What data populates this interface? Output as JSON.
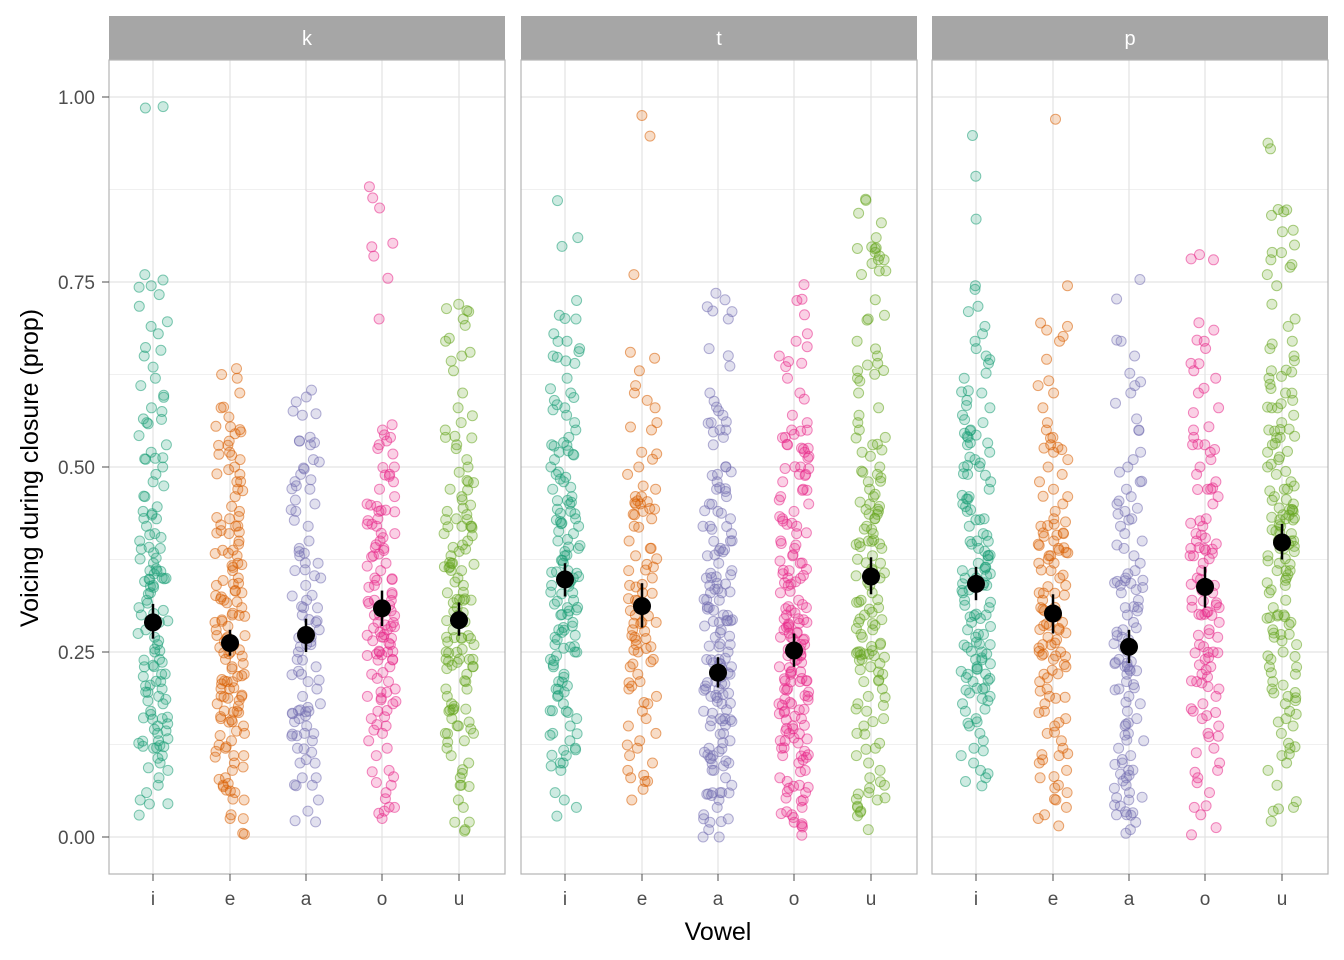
{
  "chart_data": {
    "type": "scatter",
    "title": "",
    "xlabel": "Vowel",
    "ylabel": "Voicing during closure (prop)",
    "facets": [
      "k",
      "t",
      "p"
    ],
    "categories": [
      "i",
      "e",
      "a",
      "o",
      "u"
    ],
    "ylim": [
      -0.05,
      1.05
    ],
    "yticks": [
      0.0,
      0.25,
      0.5,
      0.75,
      1.0
    ],
    "ytick_labels": [
      "0.00",
      "0.25",
      "0.50",
      "0.75",
      "1.00"
    ],
    "grid": true,
    "legend": "none",
    "colors": {
      "i": "#1b9e77",
      "e": "#d95f02",
      "a": "#7570b3",
      "o": "#e7298a",
      "u": "#66a61e",
      "summary": "#000000",
      "strip_bg": "#a6a6a6",
      "grid": "#e3e3e3",
      "panel_border": "#b3b3b3"
    },
    "summary": [
      {
        "facet": "k",
        "vowel": "i",
        "mean": 0.29,
        "lower": 0.268,
        "upper": 0.315
      },
      {
        "facet": "k",
        "vowel": "e",
        "mean": 0.262,
        "lower": 0.245,
        "upper": 0.28
      },
      {
        "facet": "k",
        "vowel": "a",
        "mean": 0.273,
        "lower": 0.25,
        "upper": 0.295
      },
      {
        "facet": "k",
        "vowel": "o",
        "mean": 0.309,
        "lower": 0.285,
        "upper": 0.333
      },
      {
        "facet": "k",
        "vowel": "u",
        "mean": 0.293,
        "lower": 0.272,
        "upper": 0.317
      },
      {
        "facet": "t",
        "vowel": "i",
        "mean": 0.348,
        "lower": 0.325,
        "upper": 0.37
      },
      {
        "facet": "t",
        "vowel": "e",
        "mean": 0.312,
        "lower": 0.283,
        "upper": 0.343
      },
      {
        "facet": "t",
        "vowel": "a",
        "mean": 0.222,
        "lower": 0.202,
        "upper": 0.243
      },
      {
        "facet": "t",
        "vowel": "o",
        "mean": 0.252,
        "lower": 0.23,
        "upper": 0.275
      },
      {
        "facet": "t",
        "vowel": "u",
        "mean": 0.352,
        "lower": 0.328,
        "upper": 0.378
      },
      {
        "facet": "p",
        "vowel": "i",
        "mean": 0.342,
        "lower": 0.32,
        "upper": 0.365
      },
      {
        "facet": "p",
        "vowel": "e",
        "mean": 0.302,
        "lower": 0.275,
        "upper": 0.328
      },
      {
        "facet": "p",
        "vowel": "a",
        "mean": 0.257,
        "lower": 0.235,
        "upper": 0.28
      },
      {
        "facet": "p",
        "vowel": "o",
        "mean": 0.338,
        "lower": 0.31,
        "upper": 0.365
      },
      {
        "facet": "p",
        "vowel": "u",
        "mean": 0.398,
        "lower": 0.375,
        "upper": 0.423
      }
    ],
    "points": [
      {
        "facet": "k",
        "vowel": "i",
        "n": 140,
        "values": [
          0.987,
          0.76,
          0.745,
          0.743,
          0.733,
          0.69,
          0.68,
          0.65,
          0.635,
          0.62,
          0.61,
          0.58,
          0.575,
          0.565,
          0.56,
          0.53,
          0.52,
          0.5,
          0.49,
          0.48,
          0.46,
          0.44,
          0.43,
          0.42,
          0.41,
          0.4,
          0.39,
          0.37,
          0.36,
          0.35,
          0.34,
          0.33,
          0.32,
          0.31,
          0.3,
          0.29,
          0.28,
          0.27,
          0.26,
          0.25,
          0.24,
          0.23,
          0.22,
          0.21,
          0.2,
          0.19,
          0.18,
          0.17,
          0.16,
          0.15,
          0.14,
          0.13,
          0.12,
          0.11,
          0.1,
          0.09,
          0.08,
          0.07,
          0.06,
          0.05,
          0.045
        ]
      },
      {
        "facet": "k",
        "vowel": "e",
        "n": 150,
        "values": [
          0.633,
          0.625,
          0.62,
          0.6,
          0.58,
          0.555,
          0.545,
          0.535,
          0.52,
          0.51,
          0.5,
          0.49,
          0.48,
          0.47,
          0.46,
          0.44,
          0.43,
          0.42,
          0.41,
          0.4,
          0.38,
          0.37,
          0.36,
          0.35,
          0.34,
          0.33,
          0.32,
          0.31,
          0.3,
          0.29,
          0.28,
          0.27,
          0.26,
          0.25,
          0.24,
          0.23,
          0.22,
          0.21,
          0.2,
          0.19,
          0.18,
          0.17,
          0.16,
          0.15,
          0.14,
          0.13,
          0.12,
          0.11,
          0.1,
          0.09,
          0.08,
          0.07,
          0.06,
          0.05,
          0.03,
          0.025,
          0.005
        ]
      },
      {
        "facet": "k",
        "vowel": "a",
        "n": 100,
        "values": [
          0.588,
          0.57,
          0.535,
          0.53,
          0.51,
          0.49,
          0.47,
          0.45,
          0.44,
          0.42,
          0.4,
          0.39,
          0.38,
          0.37,
          0.36,
          0.35,
          0.34,
          0.32,
          0.31,
          0.3,
          0.29,
          0.28,
          0.27,
          0.26,
          0.25,
          0.24,
          0.23,
          0.22,
          0.21,
          0.2,
          0.19,
          0.18,
          0.17,
          0.16,
          0.15,
          0.14,
          0.13,
          0.12,
          0.1,
          0.08,
          0.07,
          0.05,
          0.035
        ]
      },
      {
        "facet": "k",
        "vowel": "o",
        "n": 130,
        "values": [
          0.85,
          0.785,
          0.755,
          0.7,
          0.55,
          0.54,
          0.53,
          0.525,
          0.5,
          0.49,
          0.48,
          0.47,
          0.46,
          0.45,
          0.44,
          0.43,
          0.42,
          0.41,
          0.4,
          0.39,
          0.38,
          0.37,
          0.36,
          0.35,
          0.34,
          0.33,
          0.32,
          0.31,
          0.3,
          0.29,
          0.28,
          0.27,
          0.26,
          0.25,
          0.24,
          0.23,
          0.22,
          0.21,
          0.2,
          0.19,
          0.18,
          0.17,
          0.16,
          0.15,
          0.14,
          0.13,
          0.12,
          0.11,
          0.09,
          0.07,
          0.06,
          0.04,
          0.035,
          0.025
        ]
      },
      {
        "facet": "k",
        "vowel": "u",
        "n": 140,
        "values": [
          0.72,
          0.71,
          0.7,
          0.67,
          0.655,
          0.65,
          0.63,
          0.6,
          0.58,
          0.56,
          0.55,
          0.54,
          0.53,
          0.51,
          0.5,
          0.48,
          0.47,
          0.46,
          0.44,
          0.43,
          0.42,
          0.41,
          0.4,
          0.38,
          0.37,
          0.36,
          0.35,
          0.34,
          0.33,
          0.32,
          0.31,
          0.3,
          0.29,
          0.28,
          0.27,
          0.26,
          0.25,
          0.24,
          0.23,
          0.22,
          0.21,
          0.2,
          0.19,
          0.18,
          0.17,
          0.16,
          0.15,
          0.14,
          0.13,
          0.12,
          0.11,
          0.1,
          0.08,
          0.07,
          0.05,
          0.04,
          0.02,
          0.01,
          0.008
        ]
      },
      {
        "facet": "t",
        "vowel": "i",
        "n": 150,
        "values": [
          0.86,
          0.81,
          0.705,
          0.7,
          0.68,
          0.67,
          0.66,
          0.65,
          0.64,
          0.62,
          0.6,
          0.59,
          0.58,
          0.57,
          0.56,
          0.55,
          0.54,
          0.53,
          0.52,
          0.51,
          0.5,
          0.49,
          0.48,
          0.47,
          0.46,
          0.45,
          0.44,
          0.43,
          0.42,
          0.41,
          0.4,
          0.39,
          0.38,
          0.37,
          0.36,
          0.35,
          0.34,
          0.33,
          0.32,
          0.31,
          0.3,
          0.29,
          0.28,
          0.27,
          0.26,
          0.25,
          0.24,
          0.23,
          0.22,
          0.21,
          0.2,
          0.19,
          0.18,
          0.17,
          0.16,
          0.15,
          0.14,
          0.13,
          0.12,
          0.11,
          0.1,
          0.09,
          0.06,
          0.05,
          0.04
        ]
      },
      {
        "facet": "t",
        "vowel": "e",
        "n": 100,
        "values": [
          0.975,
          0.76,
          0.655,
          0.63,
          0.61,
          0.6,
          0.59,
          0.58,
          0.56,
          0.55,
          0.52,
          0.5,
          0.49,
          0.47,
          0.46,
          0.45,
          0.44,
          0.43,
          0.42,
          0.4,
          0.39,
          0.38,
          0.36,
          0.35,
          0.34,
          0.33,
          0.32,
          0.31,
          0.3,
          0.29,
          0.28,
          0.27,
          0.26,
          0.25,
          0.24,
          0.23,
          0.22,
          0.21,
          0.2,
          0.19,
          0.18,
          0.17,
          0.16,
          0.15,
          0.14,
          0.13,
          0.12,
          0.11,
          0.1,
          0.09,
          0.08,
          0.075,
          0.05
        ]
      },
      {
        "facet": "t",
        "vowel": "a",
        "n": 170,
        "values": [
          0.71,
          0.7,
          0.66,
          0.6,
          0.57,
          0.56,
          0.55,
          0.54,
          0.53,
          0.5,
          0.49,
          0.48,
          0.47,
          0.46,
          0.45,
          0.44,
          0.43,
          0.42,
          0.41,
          0.4,
          0.39,
          0.38,
          0.37,
          0.36,
          0.35,
          0.34,
          0.33,
          0.32,
          0.31,
          0.3,
          0.29,
          0.28,
          0.27,
          0.26,
          0.25,
          0.24,
          0.23,
          0.22,
          0.21,
          0.2,
          0.19,
          0.18,
          0.17,
          0.16,
          0.15,
          0.14,
          0.13,
          0.12,
          0.11,
          0.1,
          0.09,
          0.08,
          0.07,
          0.06,
          0.05,
          0.04,
          0.03,
          0.02,
          0.01,
          0.0
        ]
      },
      {
        "facet": "t",
        "vowel": "o",
        "n": 190,
        "values": [
          0.725,
          0.68,
          0.67,
          0.65,
          0.62,
          0.6,
          0.57,
          0.56,
          0.55,
          0.54,
          0.53,
          0.52,
          0.5,
          0.49,
          0.48,
          0.47,
          0.46,
          0.45,
          0.44,
          0.43,
          0.42,
          0.41,
          0.4,
          0.39,
          0.38,
          0.37,
          0.36,
          0.35,
          0.34,
          0.33,
          0.32,
          0.31,
          0.3,
          0.29,
          0.28,
          0.27,
          0.26,
          0.25,
          0.24,
          0.23,
          0.22,
          0.21,
          0.2,
          0.19,
          0.18,
          0.17,
          0.16,
          0.15,
          0.14,
          0.13,
          0.12,
          0.11,
          0.1,
          0.09,
          0.08,
          0.07,
          0.06,
          0.05,
          0.04,
          0.03,
          0.02,
          0.018
        ]
      },
      {
        "facet": "t",
        "vowel": "u",
        "n": 160,
        "values": [
          0.843,
          0.83,
          0.81,
          0.79,
          0.78,
          0.775,
          0.765,
          0.705,
          0.7,
          0.67,
          0.65,
          0.64,
          0.63,
          0.62,
          0.6,
          0.58,
          0.56,
          0.55,
          0.54,
          0.53,
          0.52,
          0.5,
          0.49,
          0.48,
          0.47,
          0.46,
          0.45,
          0.44,
          0.43,
          0.42,
          0.41,
          0.4,
          0.39,
          0.38,
          0.37,
          0.36,
          0.35,
          0.34,
          0.33,
          0.32,
          0.31,
          0.3,
          0.29,
          0.28,
          0.27,
          0.26,
          0.25,
          0.24,
          0.23,
          0.22,
          0.21,
          0.2,
          0.19,
          0.18,
          0.17,
          0.16,
          0.15,
          0.14,
          0.12,
          0.11,
          0.1,
          0.09,
          0.08,
          0.07,
          0.06,
          0.05,
          0.04,
          0.035,
          0.01
        ]
      },
      {
        "facet": "p",
        "vowel": "i",
        "n": 150,
        "values": [
          0.948,
          0.893,
          0.835,
          0.745,
          0.74,
          0.71,
          0.69,
          0.68,
          0.67,
          0.65,
          0.64,
          0.62,
          0.6,
          0.59,
          0.58,
          0.57,
          0.56,
          0.55,
          0.54,
          0.53,
          0.52,
          0.51,
          0.5,
          0.49,
          0.48,
          0.47,
          0.46,
          0.45,
          0.44,
          0.43,
          0.42,
          0.41,
          0.4,
          0.39,
          0.38,
          0.37,
          0.36,
          0.35,
          0.34,
          0.33,
          0.32,
          0.31,
          0.3,
          0.29,
          0.28,
          0.27,
          0.26,
          0.25,
          0.24,
          0.23,
          0.22,
          0.21,
          0.2,
          0.19,
          0.18,
          0.17,
          0.16,
          0.15,
          0.14,
          0.13,
          0.12,
          0.11,
          0.1,
          0.09,
          0.08,
          0.075
        ]
      },
      {
        "facet": "p",
        "vowel": "e",
        "n": 130,
        "values": [
          0.97,
          0.745,
          0.69,
          0.685,
          0.67,
          0.61,
          0.6,
          0.58,
          0.56,
          0.55,
          0.54,
          0.53,
          0.52,
          0.51,
          0.5,
          0.49,
          0.48,
          0.47,
          0.46,
          0.45,
          0.44,
          0.43,
          0.42,
          0.41,
          0.4,
          0.39,
          0.38,
          0.37,
          0.36,
          0.35,
          0.34,
          0.33,
          0.32,
          0.31,
          0.3,
          0.29,
          0.28,
          0.27,
          0.26,
          0.25,
          0.24,
          0.23,
          0.22,
          0.21,
          0.2,
          0.19,
          0.18,
          0.17,
          0.16,
          0.15,
          0.14,
          0.13,
          0.12,
          0.11,
          0.1,
          0.09,
          0.08,
          0.07,
          0.06,
          0.05,
          0.04,
          0.03,
          0.025,
          0.015
        ]
      },
      {
        "facet": "p",
        "vowel": "a",
        "n": 120,
        "values": [
          0.727,
          0.67,
          0.65,
          0.615,
          0.61,
          0.6,
          0.565,
          0.55,
          0.52,
          0.51,
          0.5,
          0.48,
          0.47,
          0.46,
          0.45,
          0.44,
          0.43,
          0.42,
          0.41,
          0.4,
          0.39,
          0.38,
          0.37,
          0.36,
          0.35,
          0.34,
          0.33,
          0.32,
          0.31,
          0.3,
          0.29,
          0.28,
          0.27,
          0.26,
          0.25,
          0.24,
          0.23,
          0.22,
          0.21,
          0.2,
          0.19,
          0.18,
          0.17,
          0.16,
          0.15,
          0.14,
          0.13,
          0.12,
          0.11,
          0.1,
          0.09,
          0.08,
          0.07,
          0.06,
          0.05,
          0.03,
          0.02,
          0.01,
          0.005
        ]
      },
      {
        "facet": "p",
        "vowel": "o",
        "n": 120,
        "values": [
          0.787,
          0.78,
          0.695,
          0.685,
          0.67,
          0.64,
          0.63,
          0.62,
          0.6,
          0.58,
          0.55,
          0.54,
          0.53,
          0.52,
          0.51,
          0.5,
          0.49,
          0.48,
          0.47,
          0.46,
          0.45,
          0.43,
          0.42,
          0.41,
          0.4,
          0.39,
          0.38,
          0.37,
          0.36,
          0.35,
          0.34,
          0.33,
          0.32,
          0.31,
          0.3,
          0.29,
          0.28,
          0.27,
          0.26,
          0.25,
          0.24,
          0.23,
          0.22,
          0.21,
          0.2,
          0.19,
          0.18,
          0.17,
          0.16,
          0.15,
          0.14,
          0.12,
          0.1,
          0.09,
          0.08,
          0.06,
          0.04,
          0.03,
          0.003
        ]
      },
      {
        "facet": "p",
        "vowel": "u",
        "n": 160,
        "values": [
          0.93,
          0.848,
          0.845,
          0.84,
          0.82,
          0.8,
          0.79,
          0.78,
          0.77,
          0.76,
          0.745,
          0.72,
          0.7,
          0.69,
          0.67,
          0.66,
          0.65,
          0.63,
          0.62,
          0.6,
          0.59,
          0.58,
          0.57,
          0.56,
          0.55,
          0.54,
          0.53,
          0.52,
          0.51,
          0.5,
          0.49,
          0.48,
          0.47,
          0.46,
          0.45,
          0.44,
          0.43,
          0.42,
          0.41,
          0.4,
          0.39,
          0.38,
          0.37,
          0.36,
          0.35,
          0.34,
          0.33,
          0.32,
          0.31,
          0.3,
          0.29,
          0.28,
          0.27,
          0.26,
          0.25,
          0.24,
          0.23,
          0.22,
          0.21,
          0.2,
          0.19,
          0.18,
          0.17,
          0.16,
          0.15,
          0.14,
          0.12,
          0.11,
          0.1,
          0.09,
          0.07,
          0.04,
          0.035
        ]
      }
    ]
  }
}
